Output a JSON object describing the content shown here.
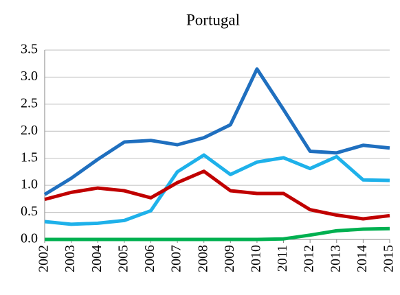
{
  "chart_data": {
    "type": "line",
    "title": "Portugal",
    "categories": [
      "2002",
      "2003",
      "2004",
      "2005",
      "2006",
      "2007",
      "2008",
      "2009",
      "2010",
      "2011",
      "2012",
      "2013",
      "2014",
      "2015"
    ],
    "series": [
      {
        "color": "#1f6fbf",
        "values": [
          0.83,
          1.13,
          1.48,
          1.8,
          1.83,
          1.75,
          1.88,
          2.12,
          3.15,
          2.4,
          1.63,
          1.6,
          1.74,
          1.69
        ]
      },
      {
        "color": "#1eb1ea",
        "values": [
          0.33,
          0.28,
          0.3,
          0.35,
          0.53,
          1.25,
          1.56,
          1.2,
          1.43,
          1.51,
          1.31,
          1.53,
          1.1,
          1.09
        ]
      },
      {
        "color": "#c00000",
        "values": [
          0.74,
          0.87,
          0.95,
          0.9,
          0.77,
          1.05,
          1.26,
          0.9,
          0.85,
          0.85,
          0.55,
          0.45,
          0.38,
          0.44
        ]
      },
      {
        "color": "#00b050",
        "values": [
          0,
          0,
          0,
          0,
          0,
          0,
          0,
          0,
          0,
          0.01,
          0.08,
          0.16,
          0.19,
          0.2
        ]
      }
    ],
    "ylim": [
      0,
      3.5
    ],
    "yticks": [
      {
        "value": 0,
        "label": "0.0"
      },
      0.5,
      {
        "value": 1,
        "label": "1.0"
      },
      1.5,
      {
        "value": 2,
        "label": "2.0"
      },
      2.5,
      {
        "value": 3,
        "label": "3.0"
      },
      3.5
    ],
    "grid": true
  }
}
